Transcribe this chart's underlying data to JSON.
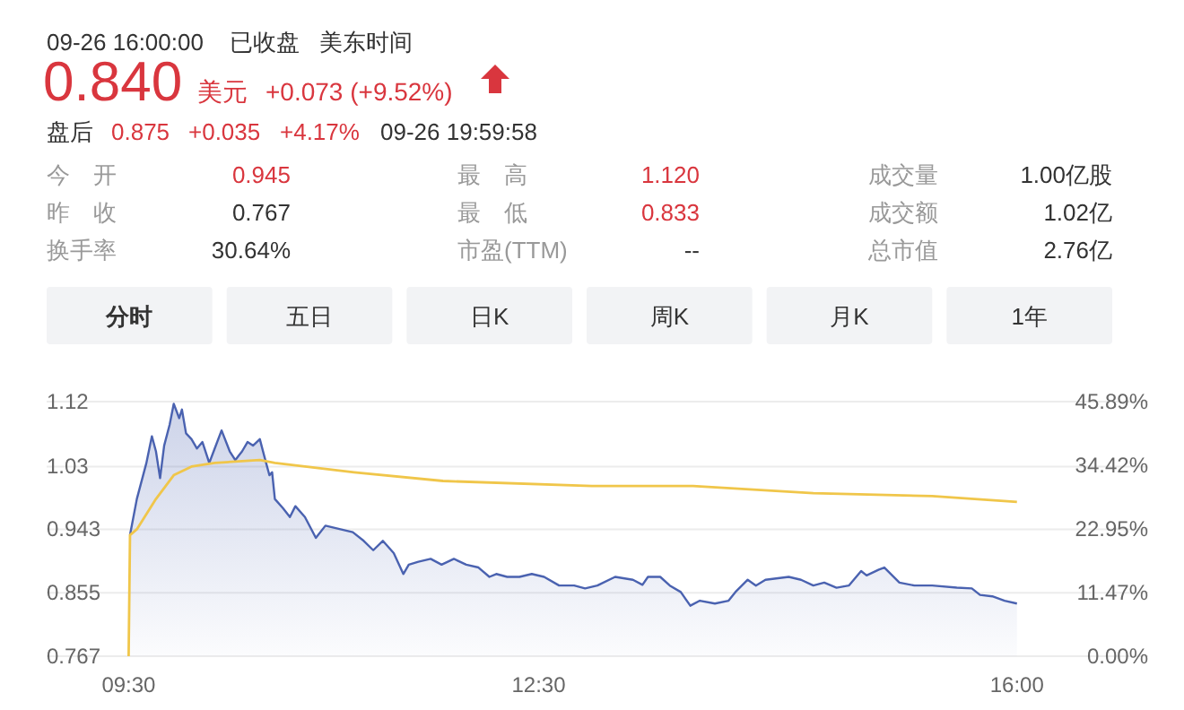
{
  "chart_data": [
    {
      "type": "other",
      "annotations": [
        "09-26 16:00:00",
        "已收盘",
        "美东时间",
        "0.840",
        "美元",
        "+0.073 (+9.52%)",
        "盘后",
        "0.875",
        "+0.035",
        "+4.17%",
        "09-26 19:59:58"
      ]
    },
    {
      "type": "other",
      "annotations": [
        "今　开",
        "0.945",
        "最　高",
        "1.120",
        "成交量",
        "1.00亿股",
        "昨　收",
        "0.767",
        "最　低",
        "0.833",
        "成交额",
        "1.02亿",
        "换手率",
        "30.64%",
        "市盈(TTM)",
        "--",
        "总市值",
        "2.76亿"
      ]
    },
    {
      "type": "other",
      "annotations": [
        "分时",
        "五日",
        "日K",
        "周K",
        "月K",
        "1年"
      ]
    },
    {
      "type": "line",
      "grid": "y",
      "xlim": [
        8.9,
        16.96
      ],
      "xticks": [
        {
          "value": 9.5,
          "label": "09:30"
        },
        {
          "value": 12.5,
          "label": "12:30"
        },
        {
          "value": 16,
          "label": "16:00"
        }
      ],
      "ylim": [
        0.767,
        1.12
      ],
      "yticks": [
        0.767,
        0.855,
        0.943,
        1.03,
        1.12
      ],
      "y2lim": [
        0,
        45.89
      ],
      "y2ticks": [
        {
          "value": 0,
          "label": "0.00%"
        },
        {
          "value": 11.47,
          "label": "11.47%"
        },
        {
          "value": 22.95,
          "label": "22.95%"
        },
        {
          "value": 34.42,
          "label": "34.42%"
        },
        {
          "value": 45.89,
          "label": "45.89%"
        }
      ],
      "series": [
        {
          "type": "area",
          "color": "#4a62b0",
          "x": [
            9.51,
            9.56,
            9.63,
            9.67,
            9.7,
            9.73,
            9.76,
            9.8,
            9.83,
            9.87,
            9.89,
            9.92,
            9.96,
            10.0,
            10.04,
            10.09,
            10.13,
            10.18,
            10.24,
            10.28,
            10.33,
            10.37,
            10.41,
            10.46,
            10.5,
            10.53,
            10.55,
            10.57,
            10.63,
            10.68,
            10.72,
            10.79,
            10.87,
            10.94,
            11.05,
            11.14,
            11.22,
            11.29,
            11.36,
            11.44,
            11.51,
            11.55,
            11.62,
            11.71,
            11.79,
            11.88,
            11.97,
            12.06,
            12.14,
            12.19,
            12.27,
            12.36,
            12.45,
            12.54,
            12.65,
            12.76,
            12.84,
            12.93,
            13.06,
            13.19,
            13.26,
            13.3,
            13.39,
            13.46,
            13.54,
            13.61,
            13.68,
            13.79,
            13.89,
            13.94,
            14.03,
            14.09,
            14.16,
            14.33,
            14.42,
            14.51,
            14.59,
            14.68,
            14.77,
            14.86,
            14.9,
            14.99,
            15.03,
            15.14,
            15.25,
            15.38,
            15.56,
            15.67,
            15.73,
            15.82,
            15.91,
            16.0
          ],
          "values": [
            0.935,
            0.985,
            1.035,
            1.072,
            1.051,
            1.014,
            1.059,
            1.088,
            1.117,
            1.097,
            1.109,
            1.076,
            1.068,
            1.055,
            1.064,
            1.035,
            1.055,
            1.08,
            1.051,
            1.039,
            1.051,
            1.064,
            1.059,
            1.068,
            1.039,
            1.018,
            1.022,
            0.985,
            0.972,
            0.96,
            0.975,
            0.96,
            0.931,
            0.948,
            0.943,
            0.939,
            0.927,
            0.914,
            0.927,
            0.91,
            0.881,
            0.894,
            0.898,
            0.902,
            0.894,
            0.902,
            0.894,
            0.89,
            0.877,
            0.881,
            0.877,
            0.877,
            0.881,
            0.877,
            0.865,
            0.865,
            0.861,
            0.865,
            0.877,
            0.873,
            0.866,
            0.877,
            0.877,
            0.865,
            0.856,
            0.837,
            0.844,
            0.84,
            0.844,
            0.856,
            0.873,
            0.865,
            0.873,
            0.877,
            0.873,
            0.865,
            0.869,
            0.862,
            0.865,
            0.885,
            0.879,
            0.887,
            0.89,
            0.869,
            0.865,
            0.865,
            0.862,
            0.861,
            0.852,
            0.85,
            0.844,
            0.84
          ]
        },
        {
          "type": "line",
          "color": "#f0c64a",
          "x": [
            9.5,
            9.51,
            9.56,
            9.7,
            9.83,
            9.96,
            10.13,
            10.46,
            10.57,
            11.15,
            11.8,
            12.89,
            13.63,
            14.51,
            15.38,
            16.0
          ],
          "values": [
            0.767,
            0.935,
            0.943,
            0.985,
            1.018,
            1.03,
            1.035,
            1.039,
            1.035,
            1.022,
            1.01,
            1.003,
            1.003,
            0.993,
            0.989,
            0.981
          ]
        }
      ]
    }
  ]
}
